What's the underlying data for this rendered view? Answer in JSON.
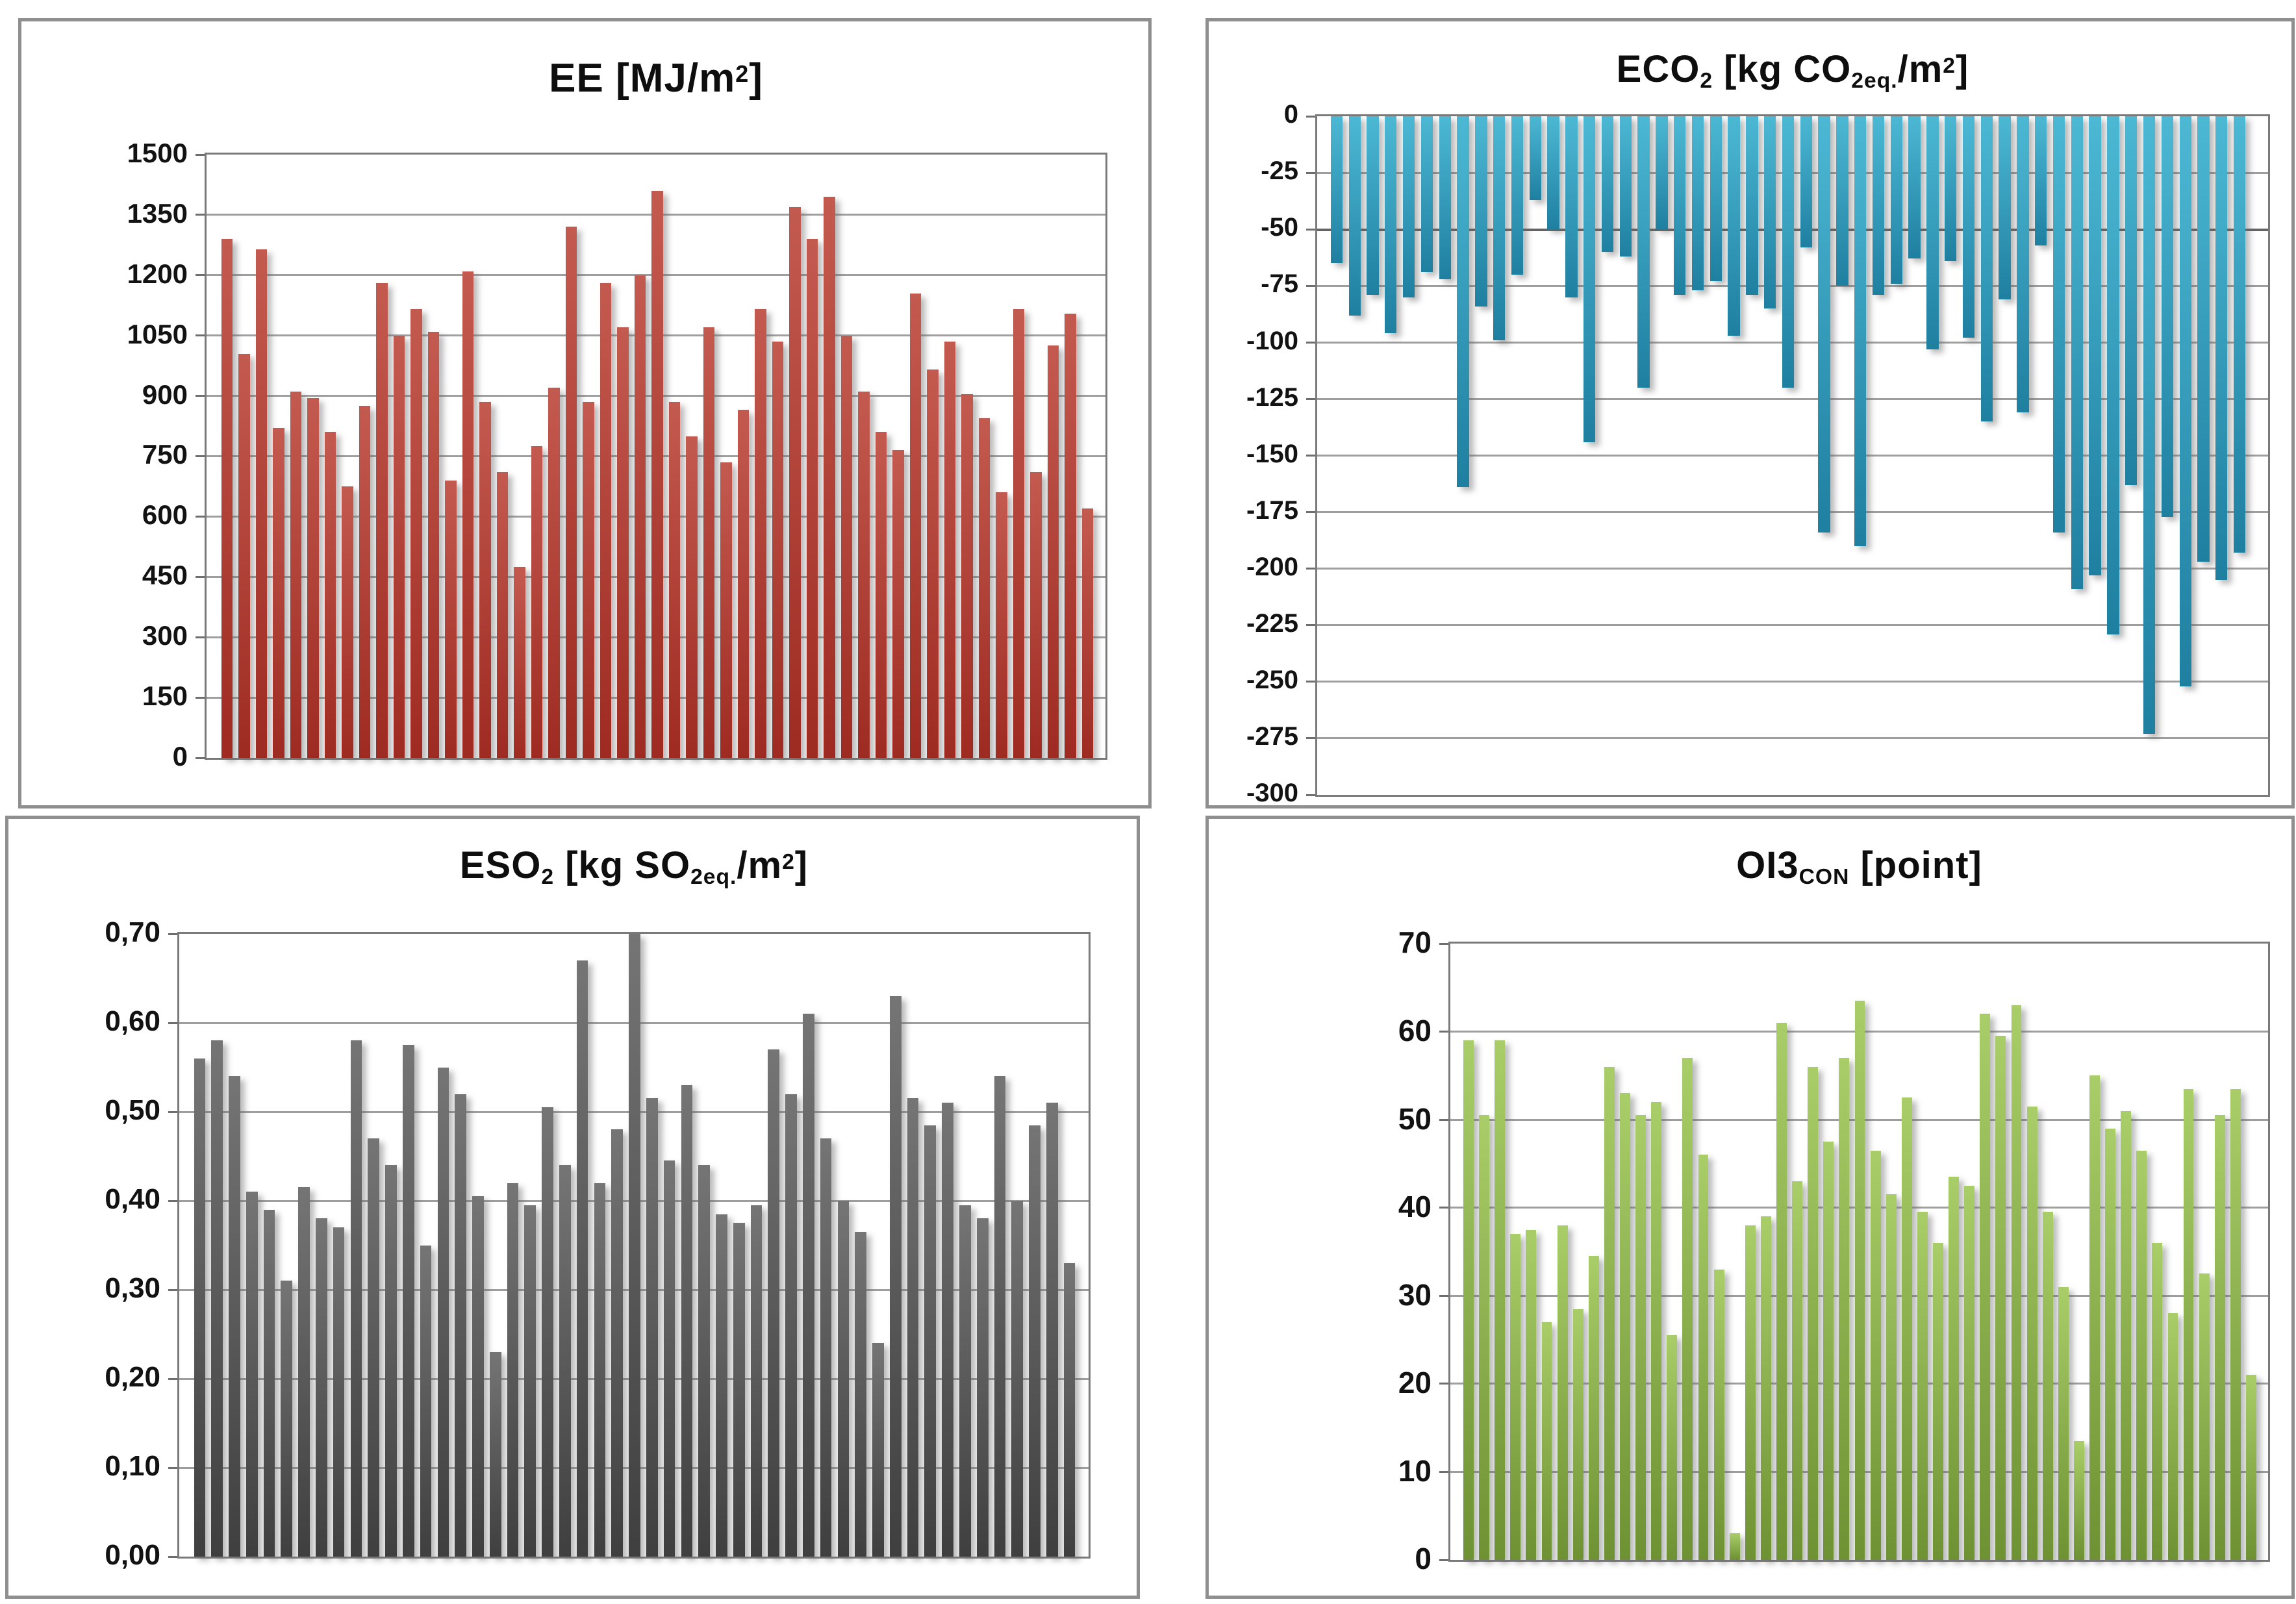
{
  "figure": {
    "description_visible_text_only": "Four bar charts (2x2 grid) of environmental indicators per building case",
    "background_color": "#ffffff",
    "panel_border_color": "#8f8f8f"
  },
  "chart_data": [
    {
      "id": "ee",
      "type": "bar",
      "title": "EE [MJ/m2]",
      "title_segments": [
        {
          "t": "EE [MJ/m"
        },
        {
          "t": "2",
          "s": "sup"
        },
        {
          "t": "]"
        }
      ],
      "xlabel": "",
      "ylabel": "",
      "ylim": [
        0,
        1500
      ],
      "ytick_step": 150,
      "tick_labels": [
        "1500",
        "1350",
        "1200",
        "1050",
        "900",
        "750",
        "600",
        "450",
        "300",
        "150",
        "0"
      ],
      "tick_values": [
        1500,
        1350,
        1200,
        1050,
        900,
        750,
        600,
        450,
        300,
        150,
        0
      ],
      "grid": true,
      "legend": false,
      "bar_gradient": {
        "top": "#c35a50",
        "bottom": "#9e2b22"
      },
      "values": [
        1290,
        1005,
        1265,
        820,
        910,
        895,
        810,
        675,
        875,
        1180,
        1050,
        1115,
        1060,
        690,
        1210,
        885,
        710,
        475,
        775,
        920,
        1320,
        885,
        1180,
        1070,
        1200,
        1410,
        885,
        800,
        1070,
        735,
        865,
        1115,
        1035,
        1370,
        1290,
        1395,
        1050,
        910,
        810,
        765,
        1155,
        965,
        1035,
        905,
        845,
        660,
        1115,
        710,
        1025,
        1105,
        620
      ]
    },
    {
      "id": "eco2",
      "type": "bar",
      "title": "ECO2 [kg CO2eq./m2]",
      "title_segments": [
        {
          "t": "ECO"
        },
        {
          "t": "2",
          "s": "sub"
        },
        {
          "t": " [kg CO"
        },
        {
          "t": "2eq.",
          "s": "sub"
        },
        {
          "t": "/m"
        },
        {
          "t": "2",
          "s": "sup"
        },
        {
          "t": "]"
        }
      ],
      "xlabel": "",
      "ylabel": "",
      "ylim": [
        -300,
        0
      ],
      "ytick_step": 25,
      "tick_labels": [
        "0",
        "-25",
        "-50",
        "-75",
        "-100",
        "-125",
        "-150",
        "-175",
        "-200",
        "-225",
        "-250",
        "-275",
        "-300"
      ],
      "tick_values": [
        0,
        -25,
        -50,
        -75,
        -100,
        -125,
        -150,
        -175,
        -200,
        -225,
        -250,
        -275,
        -300
      ],
      "emphasized_gridline": -50,
      "grid": true,
      "legend": false,
      "bar_gradient": {
        "top": "#4cb8d4",
        "bottom": "#1f7fa0"
      },
      "values": [
        -65,
        -88,
        -79,
        -96,
        -80,
        -69,
        -72,
        -164,
        -84,
        -99,
        -70,
        -37,
        -50,
        -80,
        -144,
        -60,
        -62,
        -120,
        -50,
        -79,
        -77,
        -73,
        -97,
        -79,
        -85,
        -120,
        -58,
        -184,
        -75,
        -190,
        -79,
        -74,
        -63,
        -103,
        -64,
        -98,
        -135,
        -81,
        -131,
        -57,
        -184,
        -209,
        -203,
        -229,
        -163,
        -273,
        -177,
        -252,
        -197,
        -205,
        -193
      ]
    },
    {
      "id": "eso2",
      "type": "bar",
      "title": "ESO2 [kg SO2eq./m2]",
      "title_segments": [
        {
          "t": "ESO"
        },
        {
          "t": "2",
          "s": "sub"
        },
        {
          "t": " [kg SO"
        },
        {
          "t": "2eq.",
          "s": "sub"
        },
        {
          "t": "/m"
        },
        {
          "t": "2",
          "s": "sup"
        },
        {
          "t": "]"
        }
      ],
      "xlabel": "",
      "ylabel": "",
      "ylim": [
        0,
        0.7
      ],
      "ytick_step": 0.1,
      "tick_labels": [
        "0,70",
        "0,60",
        "0,50",
        "0,40",
        "0,30",
        "0,20",
        "0,10",
        "0,00"
      ],
      "tick_values": [
        0.7,
        0.6,
        0.5,
        0.4,
        0.3,
        0.2,
        0.1,
        0
      ],
      "grid": true,
      "legend": false,
      "decimal_separator": ",",
      "bar_gradient": {
        "top": "#757575",
        "bottom": "#3f3f3f"
      },
      "values": [
        0.56,
        0.58,
        0.54,
        0.41,
        0.39,
        0.31,
        0.415,
        0.38,
        0.37,
        0.58,
        0.47,
        0.44,
        0.575,
        0.35,
        0.55,
        0.52,
        0.405,
        0.23,
        0.42,
        0.395,
        0.505,
        0.44,
        0.67,
        0.42,
        0.48,
        0.7,
        0.515,
        0.445,
        0.53,
        0.44,
        0.385,
        0.375,
        0.395,
        0.57,
        0.52,
        0.61,
        0.47,
        0.4,
        0.365,
        0.24,
        0.63,
        0.515,
        0.485,
        0.51,
        0.395,
        0.38,
        0.54,
        0.4,
        0.485,
        0.51,
        0.33
      ]
    },
    {
      "id": "oi3",
      "type": "bar",
      "title": "OI3CON [point]",
      "title_segments": [
        {
          "t": "OI3"
        },
        {
          "t": "CON",
          "s": "sub"
        },
        {
          "t": " [point]"
        }
      ],
      "xlabel": "",
      "ylabel": "",
      "ylim": [
        0,
        70
      ],
      "ytick_step": 10,
      "tick_labels": [
        "70",
        "60",
        "50",
        "40",
        "30",
        "20",
        "10",
        "0"
      ],
      "tick_values": [
        70,
        60,
        50,
        40,
        30,
        20,
        10,
        0
      ],
      "grid": true,
      "legend": false,
      "bar_gradient": {
        "top": "#a9cd68",
        "bottom": "#6e9233"
      },
      "values": [
        59,
        50.5,
        59,
        37,
        37.5,
        27,
        38,
        28.5,
        34.5,
        56,
        53,
        50.5,
        52,
        25.5,
        57,
        46,
        33,
        3,
        38,
        39,
        61,
        43,
        56,
        47.5,
        57,
        63.5,
        46.5,
        41.5,
        52.5,
        39.5,
        36,
        43.5,
        42.5,
        62,
        59.5,
        63,
        51.5,
        39.5,
        31,
        13.5,
        55,
        49,
        51,
        46.5,
        36,
        28,
        53.5,
        32.5,
        50.5,
        53.5,
        21
      ]
    }
  ]
}
